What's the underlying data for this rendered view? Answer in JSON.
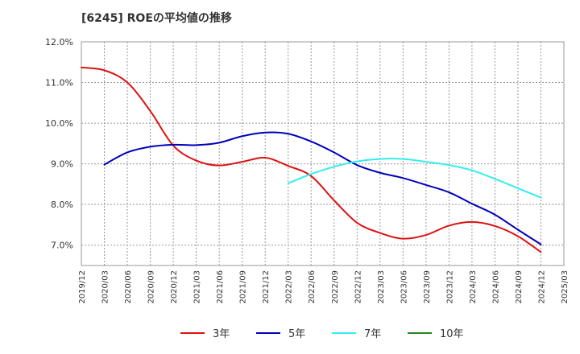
{
  "chart_data": {
    "type": "line",
    "title": "[6245]  ROEの平均値の推移",
    "xlabel": "",
    "ylabel": "",
    "ylim": [
      6.5,
      12.0
    ],
    "yticks": [
      7.0,
      8.0,
      9.0,
      10.0,
      11.0,
      12.0
    ],
    "ytick_labels": [
      "7.0%",
      "8.0%",
      "9.0%",
      "10.0%",
      "11.0%",
      "12.0%"
    ],
    "categories": [
      "2019/12",
      "2020/03",
      "2020/06",
      "2020/09",
      "2020/12",
      "2021/03",
      "2021/06",
      "2021/09",
      "2021/12",
      "2022/03",
      "2022/06",
      "2022/09",
      "2022/12",
      "2023/03",
      "2023/06",
      "2023/09",
      "2023/12",
      "2024/03",
      "2024/06",
      "2024/09",
      "2024/12",
      "2025/03"
    ],
    "grid": true,
    "legend_position": "bottom",
    "series": [
      {
        "name": "3年",
        "color": "#dd1111",
        "values": [
          11.37,
          11.3,
          11.0,
          10.3,
          9.45,
          9.08,
          8.96,
          9.05,
          9.15,
          8.95,
          8.7,
          8.1,
          7.55,
          7.3,
          7.16,
          7.25,
          7.48,
          7.57,
          7.47,
          7.22,
          6.83,
          null
        ]
      },
      {
        "name": "5年",
        "color": "#0000bb",
        "values": [
          null,
          8.98,
          9.28,
          9.42,
          9.47,
          9.46,
          9.52,
          9.68,
          9.77,
          9.74,
          9.55,
          9.28,
          8.97,
          8.78,
          8.65,
          8.48,
          8.3,
          8.02,
          7.75,
          7.38,
          7.02,
          null
        ]
      },
      {
        "name": "7年",
        "color": "#33eeee",
        "values": [
          null,
          null,
          null,
          null,
          null,
          null,
          null,
          null,
          null,
          8.52,
          8.75,
          8.93,
          9.06,
          9.12,
          9.12,
          9.05,
          8.97,
          8.84,
          8.63,
          8.4,
          8.17,
          null
        ]
      },
      {
        "name": "10年",
        "color": "#228822",
        "values": [
          null,
          null,
          null,
          null,
          null,
          null,
          null,
          null,
          null,
          null,
          null,
          null,
          null,
          null,
          null,
          null,
          null,
          null,
          null,
          null,
          null,
          null
        ]
      }
    ]
  }
}
